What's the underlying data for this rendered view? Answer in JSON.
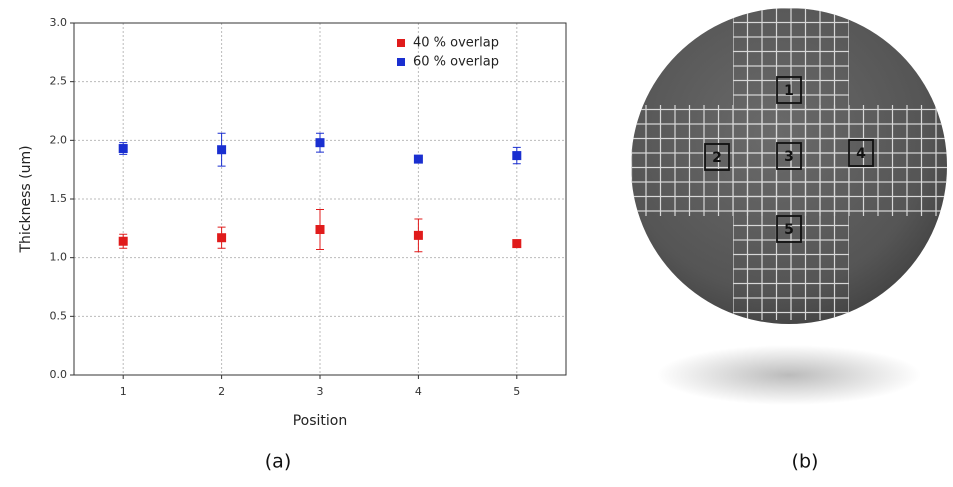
{
  "chart_data": {
    "type": "scatter",
    "x": [
      1,
      2,
      3,
      4,
      5
    ],
    "xlabel": "Position",
    "ylabel": "Thickness (um)",
    "series": [
      {
        "name": "40 % overlap",
        "color": "#e01b1b",
        "values": [
          1.14,
          1.17,
          1.24,
          1.19,
          1.12
        ],
        "errors": [
          0.06,
          0.09,
          0.17,
          0.14,
          0.03
        ]
      },
      {
        "name": "60 % overlap",
        "color": "#1a2fd0",
        "values": [
          1.93,
          1.92,
          1.98,
          1.84,
          1.87
        ],
        "errors": [
          0.05,
          0.14,
          0.08,
          0.03,
          0.07
        ]
      }
    ],
    "xlim": [
      0.5,
      5.5
    ],
    "xticks": [
      1,
      2,
      3,
      4,
      5
    ],
    "ylim": [
      0,
      3
    ],
    "yticks": [
      {
        "value": 0,
        "label": "0.0"
      },
      {
        "value": 0.5,
        "label": "0.5"
      },
      {
        "value": 1,
        "label": "1.0"
      },
      {
        "value": 1.5,
        "label": "1.5"
      },
      {
        "value": 2,
        "label": "2.0"
      },
      {
        "value": 2.5,
        "label": "2.5"
      },
      {
        "value": 3,
        "label": "3.0"
      }
    ],
    "grid": true,
    "legend": "upper-right"
  },
  "captions": [
    "(a)",
    "(b)"
  ],
  "wafer": {
    "labels": [
      "1",
      "2",
      "3",
      "4",
      "5"
    ]
  }
}
